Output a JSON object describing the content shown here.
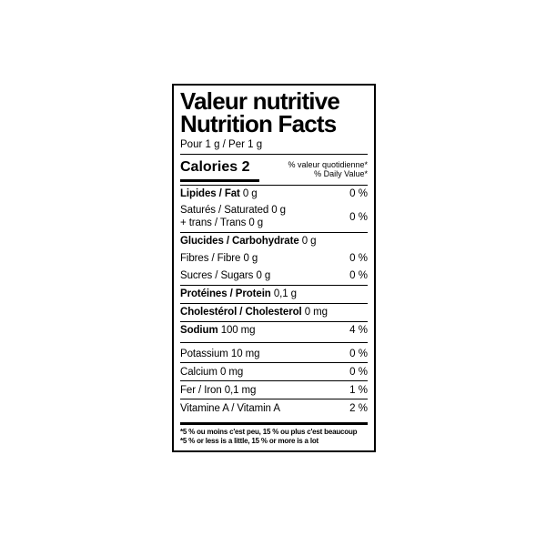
{
  "page": {
    "background": "#ffffff"
  },
  "label": {
    "border_color": "#000000",
    "text_color": "#000000",
    "title_fr": "Valeur nutritive",
    "title_en": "Nutrition Facts",
    "serving": "Pour 1 g / Per 1 g",
    "calories": {
      "label": "Calories",
      "value": "2"
    },
    "daily_value_header": {
      "fr": "% valeur quotidienne*",
      "en": "% Daily Value*"
    },
    "rows": [
      {
        "name": "Lipides / Fat",
        "amount": "0 g",
        "percent": "0 %"
      },
      {
        "line1": "Saturés / Saturated 0 g",
        "line2": "+ trans / Trans 0 g",
        "percent": "0 %"
      },
      {
        "name": "Glucides / Carbohydrate",
        "amount": "0 g"
      },
      {
        "name": "Fibres / Fibre",
        "amount": "0 g",
        "percent": "0 %"
      },
      {
        "name": "Sucres / Sugars",
        "amount": "0 g",
        "percent": "0 %"
      },
      {
        "name": "Protéines / Protein",
        "amount": "0,1 g"
      },
      {
        "name": "Cholestérol / Cholesterol",
        "amount": "0 mg"
      },
      {
        "name": "Sodium",
        "amount": "100 mg",
        "percent": "4 %"
      },
      {
        "name": "Potassium",
        "amount": "10 mg",
        "percent": "0 %"
      },
      {
        "name": "Calcium",
        "amount": "0 mg",
        "percent": "0 %"
      },
      {
        "name": "Fer / Iron",
        "amount": "0,1 mg",
        "percent": "1 %"
      },
      {
        "name": "Vitamine A / Vitamin A",
        "percent": "2 %"
      }
    ],
    "footnote_fr": "*5 % ou moins c'est peu, 15 % ou plus c'est beaucoup",
    "footnote_en": "*5 % or less is a little, 15 % or more is a lot"
  }
}
